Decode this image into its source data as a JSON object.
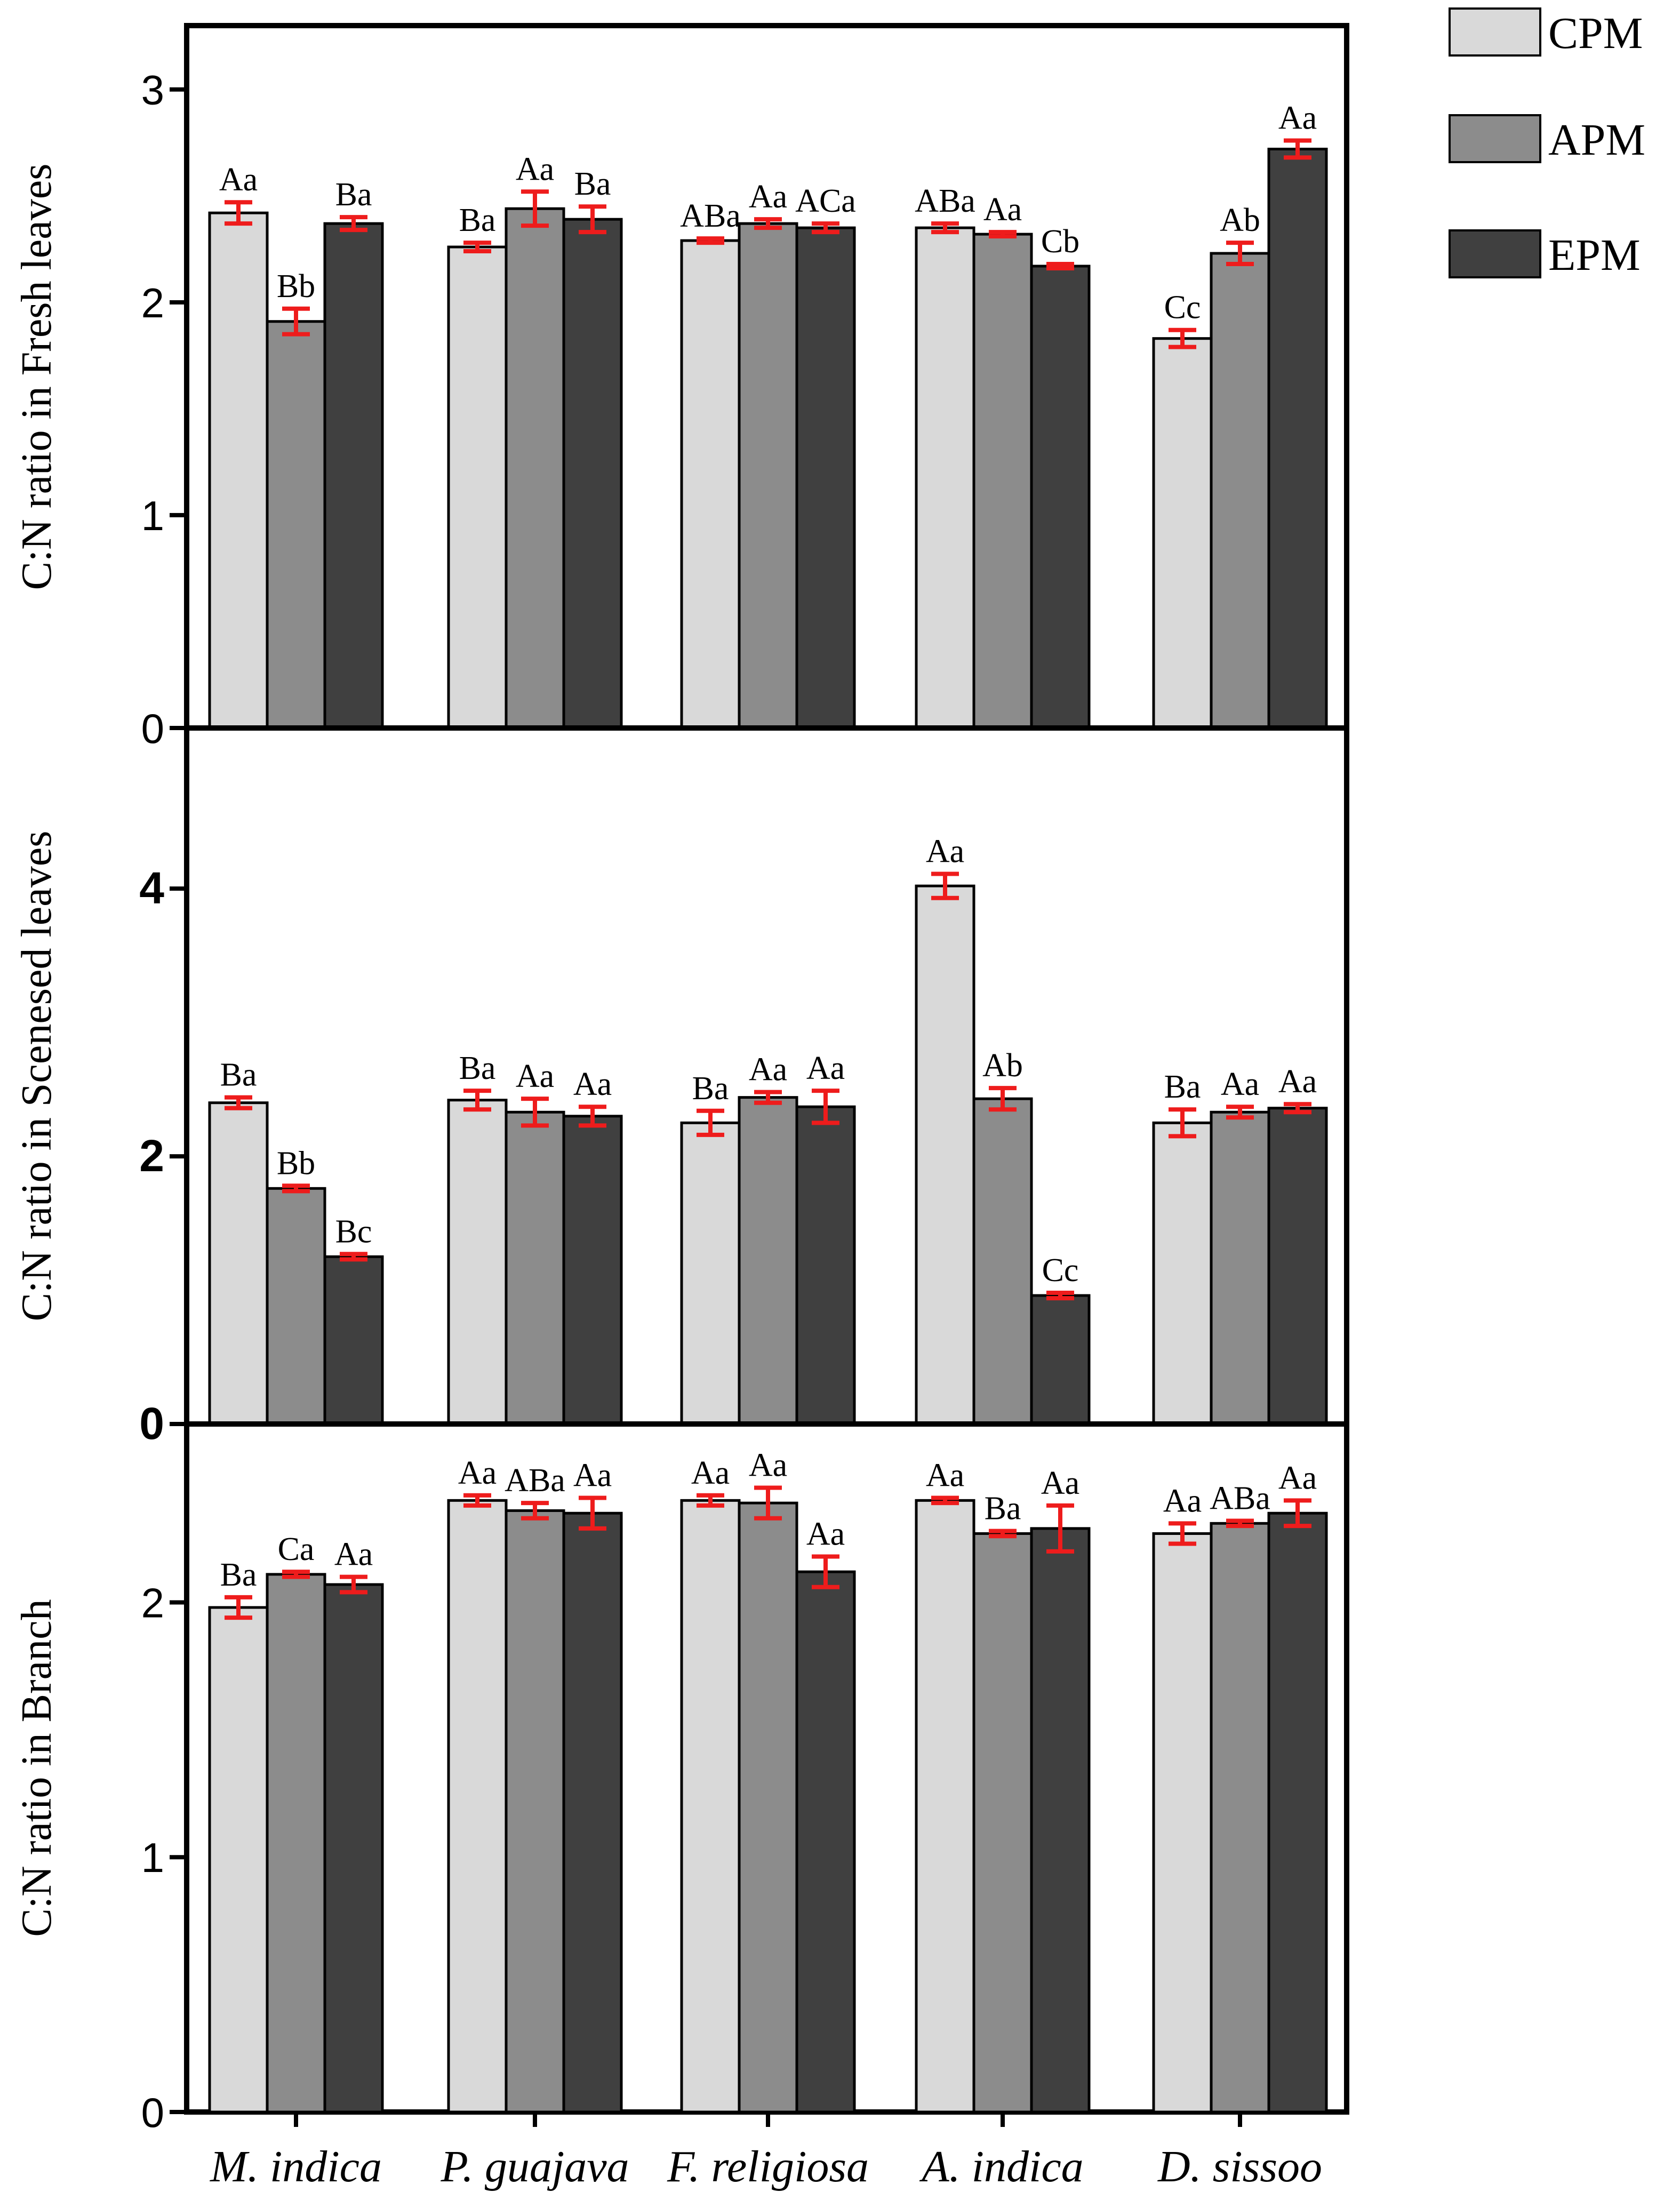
{
  "legend": [
    {
      "label": "CPM",
      "color": "#d9d9d9"
    },
    {
      "label": "APM",
      "color": "#8c8c8c"
    },
    {
      "label": "EPM",
      "color": "#404040"
    }
  ],
  "colors": {
    "error_bar": "#ee1c1c",
    "axis": "#000000",
    "bar_edge": "#000000"
  },
  "chart_data": [
    {
      "type": "bar",
      "title": "",
      "ylabel": "C:N ratio in Fresh leaves",
      "xlabel": "",
      "ylim": [
        0,
        3.3
      ],
      "yticks": [
        0,
        1,
        2,
        3
      ],
      "categories": [
        "M. indica",
        "P. guajava",
        "F. religiosa",
        "A. indica",
        "D. sissoo"
      ],
      "series": [
        {
          "name": "CPM",
          "values": [
            2.42,
            2.26,
            2.29,
            2.35,
            1.83
          ],
          "errors": [
            0.05,
            0.02,
            0.01,
            0.02,
            0.04
          ],
          "labels": [
            "Aa",
            "Ba",
            "ABa",
            "ABa",
            "Cc"
          ]
        },
        {
          "name": "APM",
          "values": [
            1.91,
            2.44,
            2.37,
            2.32,
            2.23
          ],
          "errors": [
            0.06,
            0.08,
            0.02,
            0.01,
            0.05
          ],
          "labels": [
            "Bb",
            "Aa",
            "Aa",
            "Aa",
            "Ab"
          ]
        },
        {
          "name": "EPM",
          "values": [
            2.37,
            2.39,
            2.35,
            2.17,
            2.72
          ],
          "errors": [
            0.03,
            0.06,
            0.02,
            0.01,
            0.04
          ],
          "labels": [
            "Ba",
            "Ba",
            "ACa",
            "Cb",
            "Aa"
          ]
        }
      ]
    },
    {
      "type": "bar",
      "title": "",
      "ylabel": "C:N ratio in Scenesed leaves",
      "xlabel": "",
      "ylim": [
        0,
        5.2
      ],
      "yticks": [
        0,
        2,
        4
      ],
      "categories": [
        "M. indica",
        "P. guajava",
        "F. religiosa",
        "A. indica",
        "D. sissoo"
      ],
      "series": [
        {
          "name": "CPM",
          "values": [
            2.4,
            2.42,
            2.25,
            4.02,
            2.25
          ],
          "errors": [
            0.04,
            0.07,
            0.09,
            0.09,
            0.1
          ],
          "labels": [
            "Ba",
            "Ba",
            "Ba",
            "Aa",
            "Ba"
          ]
        },
        {
          "name": "APM",
          "values": [
            1.76,
            2.33,
            2.44,
            2.43,
            2.33
          ],
          "errors": [
            0.02,
            0.1,
            0.04,
            0.08,
            0.04
          ],
          "labels": [
            "Bb",
            "Aa",
            "Aa",
            "Ab",
            "Aa"
          ]
        },
        {
          "name": "EPM",
          "values": [
            1.25,
            2.3,
            2.37,
            0.96,
            2.36
          ],
          "errors": [
            0.02,
            0.07,
            0.12,
            0.02,
            0.03
          ],
          "labels": [
            "Bc",
            "Aa",
            "Aa",
            "Cc",
            "Aa"
          ]
        }
      ]
    },
    {
      "type": "bar",
      "title": "",
      "ylabel": "C:N ratio in Branch",
      "xlabel": "",
      "ylim": [
        0,
        2.7
      ],
      "yticks": [
        0,
        1,
        2
      ],
      "categories": [
        "M. indica",
        "P. guajava",
        "F. religiosa",
        "A. indica",
        "D. sissoo"
      ],
      "series": [
        {
          "name": "CPM",
          "values": [
            1.98,
            2.4,
            2.4,
            2.4,
            2.27
          ],
          "errors": [
            0.04,
            0.02,
            0.02,
            0.01,
            0.04
          ],
          "labels": [
            "Ba",
            "Aa",
            "Aa",
            "Aa",
            "Aa"
          ]
        },
        {
          "name": "APM",
          "values": [
            2.11,
            2.36,
            2.39,
            2.27,
            2.31
          ],
          "errors": [
            0.01,
            0.03,
            0.06,
            0.01,
            0.01
          ],
          "labels": [
            "Ca",
            "ABa",
            "Aa",
            "Ba",
            "ABa"
          ]
        },
        {
          "name": "EPM",
          "values": [
            2.07,
            2.35,
            2.12,
            2.29,
            2.35
          ],
          "errors": [
            0.03,
            0.06,
            0.06,
            0.09,
            0.05
          ],
          "labels": [
            "Aa",
            "Aa",
            "Aa",
            "Aa",
            "Aa"
          ]
        }
      ]
    }
  ]
}
